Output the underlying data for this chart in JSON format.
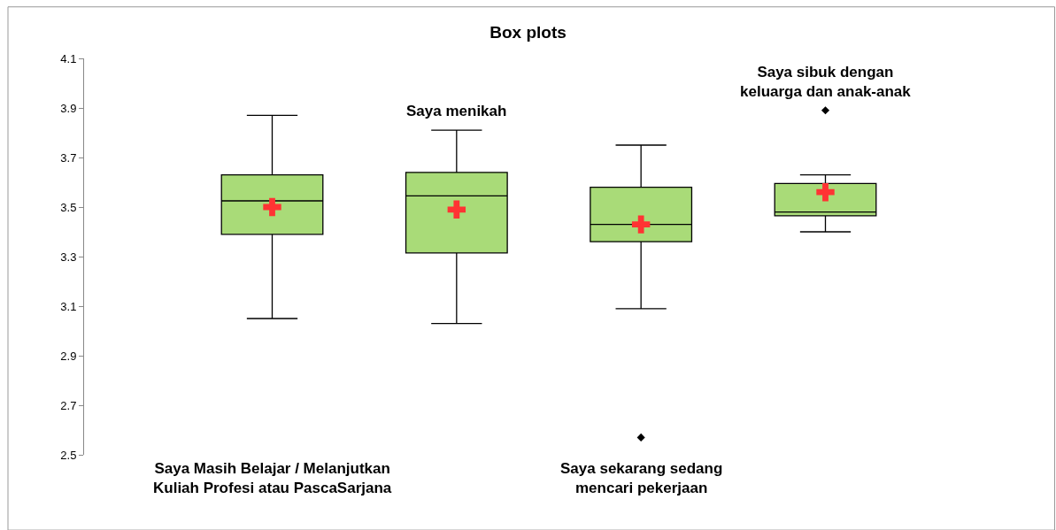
{
  "chart_data": {
    "type": "box",
    "title": "Box plots",
    "categories": [
      "Saya Masih Belajar / Melanjutkan Kuliah Profesi atau PascaSarjana",
      "Saya menikah",
      "Saya sekarang sedang mencari pekerjaan",
      "Saya sibuk dengan keluarga dan anak-anak"
    ],
    "boxes": [
      {
        "low": 3.05,
        "q1": 3.39,
        "median": 3.525,
        "q3": 3.63,
        "high": 3.87
      },
      {
        "low": 3.03,
        "q1": 3.315,
        "median": 3.545,
        "q3": 3.64,
        "high": 3.81
      },
      {
        "low": 3.09,
        "q1": 3.36,
        "median": 3.43,
        "q3": 3.58,
        "high": 3.75,
        "outliers": [
          2.57
        ]
      },
      {
        "low": 3.4,
        "q1": 3.465,
        "median": 3.48,
        "q3": 3.595,
        "high": 3.63,
        "outliers": [
          3.89
        ]
      }
    ],
    "color": "#a9db78",
    "series": [
      {
        "type": "scatter",
        "marker": "cross",
        "color": "#ff3333",
        "x": [
          "Saya Masih Belajar / Melanjutkan Kuliah Profesi atau PascaSarjana",
          "Saya menikah",
          "Saya sekarang sedang mencari pekerjaan",
          "Saya sibuk dengan keluarga dan anak-anak"
        ],
        "values": [
          3.5,
          3.49,
          3.43,
          3.56
        ]
      }
    ],
    "ylim": [
      2.5,
      4.1
    ],
    "yticks": [
      2.5,
      2.7,
      2.9,
      3.1,
      3.3,
      3.5,
      3.7,
      3.9,
      4.1
    ]
  }
}
